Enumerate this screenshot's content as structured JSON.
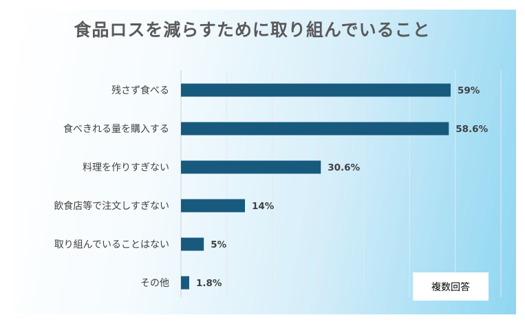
{
  "chart_data": {
    "type": "bar",
    "orientation": "horizontal",
    "title": "食品ロスを減らすために取り組んでいること",
    "categories": [
      "残さず食べる",
      "食べきれる量を購入する",
      "料理を作りすぎない",
      "飲食店等で注文しすぎない",
      "取り組んでいることはない",
      "その他"
    ],
    "values": [
      59,
      58.6,
      30.6,
      14,
      5,
      1.8
    ],
    "value_labels": [
      "59%",
      "58.6%",
      "30.6%",
      "14%",
      "5%",
      "1.8%"
    ],
    "xlim": [
      0,
      70
    ],
    "grid": true,
    "bar_color": "#175a7d",
    "note": "複数回答"
  }
}
